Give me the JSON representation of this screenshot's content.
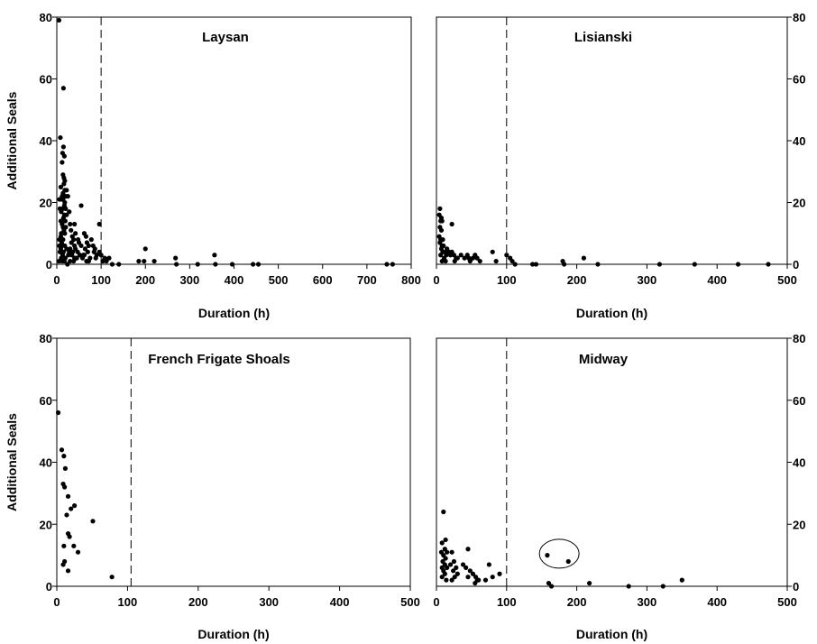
{
  "chart_data": [
    {
      "type": "scatter",
      "title": "Laysan",
      "xlabel": "Duration (h)",
      "ylabel": "Additional Seals",
      "xlim": [
        0,
        800
      ],
      "ylim": [
        0,
        80
      ],
      "xticks": [
        0,
        100,
        200,
        300,
        400,
        500,
        600,
        700,
        800
      ],
      "yticks": [
        0,
        20,
        40,
        60,
        80
      ],
      "ytick_side": "left",
      "show_ylabel": true,
      "threshold_x": 100,
      "points": [
        [
          5,
          79
        ],
        [
          15,
          57
        ],
        [
          8,
          41
        ],
        [
          15,
          38
        ],
        [
          13,
          36
        ],
        [
          17,
          35
        ],
        [
          12,
          33
        ],
        [
          14,
          29
        ],
        [
          16,
          28
        ],
        [
          18,
          27
        ],
        [
          16,
          26
        ],
        [
          9,
          25
        ],
        [
          22,
          24
        ],
        [
          18,
          24
        ],
        [
          14,
          23
        ],
        [
          20,
          22
        ],
        [
          12,
          22
        ],
        [
          6,
          21
        ],
        [
          10,
          21
        ],
        [
          14,
          21
        ],
        [
          18,
          20
        ],
        [
          25,
          22
        ],
        [
          17,
          19
        ],
        [
          13,
          18
        ],
        [
          7,
          18
        ],
        [
          20,
          18
        ],
        [
          10,
          17
        ],
        [
          17,
          16
        ],
        [
          22,
          16
        ],
        [
          15,
          15
        ],
        [
          19,
          14
        ],
        [
          9,
          14
        ],
        [
          12,
          13
        ],
        [
          14,
          12
        ],
        [
          20,
          12
        ],
        [
          16,
          11
        ],
        [
          10,
          10
        ],
        [
          18,
          10
        ],
        [
          9,
          9
        ],
        [
          14,
          8
        ],
        [
          6,
          8
        ],
        [
          11,
          7
        ],
        [
          12,
          6
        ],
        [
          6,
          6
        ],
        [
          18,
          6
        ],
        [
          22,
          5
        ],
        [
          9,
          5
        ],
        [
          15,
          4
        ],
        [
          7,
          4
        ],
        [
          13,
          3
        ],
        [
          10,
          2
        ],
        [
          19,
          2
        ],
        [
          5,
          1
        ],
        [
          12,
          1
        ],
        [
          17,
          1
        ],
        [
          24,
          0
        ],
        [
          28,
          17
        ],
        [
          30,
          13
        ],
        [
          32,
          11
        ],
        [
          35,
          9
        ],
        [
          38,
          8
        ],
        [
          33,
          7
        ],
        [
          40,
          6
        ],
        [
          30,
          5
        ],
        [
          42,
          5
        ],
        [
          28,
          4
        ],
        [
          36,
          4
        ],
        [
          26,
          3
        ],
        [
          34,
          3
        ],
        [
          45,
          2
        ],
        [
          40,
          2
        ],
        [
          30,
          1
        ],
        [
          38,
          1
        ],
        [
          40,
          13
        ],
        [
          42,
          10
        ],
        [
          48,
          8
        ],
        [
          50,
          7
        ],
        [
          55,
          6
        ],
        [
          47,
          4
        ],
        [
          52,
          3
        ],
        [
          60,
          3
        ],
        [
          43,
          2
        ],
        [
          58,
          2
        ],
        [
          55,
          19
        ],
        [
          62,
          10
        ],
        [
          66,
          9
        ],
        [
          68,
          7
        ],
        [
          72,
          6
        ],
        [
          64,
          5
        ],
        [
          70,
          4
        ],
        [
          62,
          3
        ],
        [
          75,
          2
        ],
        [
          67,
          1
        ],
        [
          72,
          1
        ],
        [
          78,
          8
        ],
        [
          82,
          6
        ],
        [
          86,
          5
        ],
        [
          90,
          3
        ],
        [
          84,
          4
        ],
        [
          96,
          4
        ],
        [
          88,
          2
        ],
        [
          96,
          13
        ],
        [
          100,
          3
        ],
        [
          104,
          1
        ],
        [
          108,
          2
        ],
        [
          112,
          1
        ],
        [
          118,
          2
        ],
        [
          125,
          0
        ],
        [
          140,
          0
        ],
        [
          200,
          5
        ],
        [
          185,
          1
        ],
        [
          197,
          1
        ],
        [
          220,
          1
        ],
        [
          268,
          2
        ],
        [
          270,
          0
        ],
        [
          318,
          0
        ],
        [
          356,
          3
        ],
        [
          358,
          0
        ],
        [
          396,
          0
        ],
        [
          443,
          0
        ],
        [
          455,
          0
        ],
        [
          745,
          0
        ],
        [
          758,
          0
        ]
      ]
    },
    {
      "type": "scatter",
      "title": "Lisianski",
      "xlabel": "Duration (h)",
      "ylabel": "",
      "xlim": [
        0,
        500
      ],
      "ylim": [
        0,
        80
      ],
      "xticks": [
        0,
        100,
        200,
        300,
        400,
        500
      ],
      "yticks": [
        0,
        20,
        40,
        60,
        80
      ],
      "ytick_side": "right",
      "show_ylabel": false,
      "threshold_x": 100,
      "points": [
        [
          5,
          18
        ],
        [
          4,
          16
        ],
        [
          7,
          15
        ],
        [
          6,
          14
        ],
        [
          8,
          14
        ],
        [
          5,
          12
        ],
        [
          7,
          11
        ],
        [
          4,
          9
        ],
        [
          6,
          8
        ],
        [
          9,
          8
        ],
        [
          5,
          7
        ],
        [
          8,
          6
        ],
        [
          10,
          6
        ],
        [
          7,
          5
        ],
        [
          12,
          4
        ],
        [
          9,
          4
        ],
        [
          6,
          3
        ],
        [
          14,
          3
        ],
        [
          11,
          2
        ],
        [
          8,
          1
        ],
        [
          13,
          1
        ],
        [
          22,
          13
        ],
        [
          15,
          5
        ],
        [
          18,
          4
        ],
        [
          20,
          3
        ],
        [
          22,
          4
        ],
        [
          25,
          3
        ],
        [
          28,
          2
        ],
        [
          30,
          2
        ],
        [
          26,
          1
        ],
        [
          35,
          3
        ],
        [
          40,
          2
        ],
        [
          44,
          3
        ],
        [
          46,
          2
        ],
        [
          48,
          1
        ],
        [
          52,
          2
        ],
        [
          55,
          3
        ],
        [
          58,
          2
        ],
        [
          62,
          1
        ],
        [
          80,
          4
        ],
        [
          85,
          1
        ],
        [
          100,
          3
        ],
        [
          105,
          2
        ],
        [
          108,
          1
        ],
        [
          112,
          0
        ],
        [
          137,
          0
        ],
        [
          142,
          0
        ],
        [
          180,
          1
        ],
        [
          182,
          0
        ],
        [
          210,
          2
        ],
        [
          230,
          0
        ],
        [
          318,
          0
        ],
        [
          368,
          0
        ],
        [
          430,
          0
        ],
        [
          473,
          0
        ]
      ]
    },
    {
      "type": "scatter",
      "title": "French Frigate Shoals",
      "xlabel": "Duration (h)",
      "ylabel": "Additional Seals",
      "xlim": [
        0,
        500
      ],
      "ylim": [
        0,
        80
      ],
      "xticks": [
        0,
        100,
        200,
        300,
        400,
        500
      ],
      "yticks": [
        0,
        20,
        40,
        60,
        80
      ],
      "ytick_side": "left",
      "show_ylabel": true,
      "threshold_x": 105,
      "points": [
        [
          2,
          56
        ],
        [
          7,
          44
        ],
        [
          10,
          42
        ],
        [
          12,
          38
        ],
        [
          9,
          33
        ],
        [
          11,
          32
        ],
        [
          16,
          29
        ],
        [
          14,
          23
        ],
        [
          20,
          25
        ],
        [
          25,
          26
        ],
        [
          16,
          17
        ],
        [
          18,
          16
        ],
        [
          30,
          11
        ],
        [
          24,
          13
        ],
        [
          10,
          13
        ],
        [
          11,
          8
        ],
        [
          9,
          7
        ],
        [
          16,
          5
        ],
        [
          51,
          21
        ],
        [
          78,
          3
        ]
      ]
    },
    {
      "type": "scatter",
      "title": "Midway",
      "xlabel": "Duration (h)",
      "ylabel": "",
      "xlim": [
        0,
        500
      ],
      "ylim": [
        0,
        80
      ],
      "xticks": [
        0,
        100,
        200,
        300,
        400,
        500
      ],
      "yticks": [
        0,
        20,
        40,
        60,
        80
      ],
      "ytick_side": "right",
      "show_ylabel": false,
      "threshold_x": 100,
      "points": [
        [
          10,
          24
        ],
        [
          13,
          15
        ],
        [
          8,
          14
        ],
        [
          12,
          12
        ],
        [
          15,
          11
        ],
        [
          7,
          11
        ],
        [
          10,
          10
        ],
        [
          13,
          9
        ],
        [
          9,
          8
        ],
        [
          12,
          7
        ],
        [
          8,
          6
        ],
        [
          15,
          6
        ],
        [
          10,
          5
        ],
        [
          12,
          4
        ],
        [
          8,
          3
        ],
        [
          14,
          2
        ],
        [
          22,
          11
        ],
        [
          25,
          8
        ],
        [
          20,
          7
        ],
        [
          28,
          6
        ],
        [
          24,
          5
        ],
        [
          30,
          4
        ],
        [
          26,
          3
        ],
        [
          22,
          2
        ],
        [
          38,
          7
        ],
        [
          42,
          6
        ],
        [
          45,
          12
        ],
        [
          48,
          5
        ],
        [
          52,
          4
        ],
        [
          56,
          3
        ],
        [
          60,
          2
        ],
        [
          45,
          3
        ],
        [
          55,
          1
        ],
        [
          58,
          2
        ],
        [
          70,
          2
        ],
        [
          75,
          7
        ],
        [
          80,
          3
        ],
        [
          90,
          4
        ],
        [
          160,
          1
        ],
        [
          164,
          0
        ],
        [
          218,
          1
        ],
        [
          274,
          0
        ],
        [
          323,
          0
        ],
        [
          350,
          2
        ],
        [
          158,
          10
        ],
        [
          188,
          8
        ]
      ],
      "annotation": "circle around two points near 160-190 h"
    }
  ]
}
